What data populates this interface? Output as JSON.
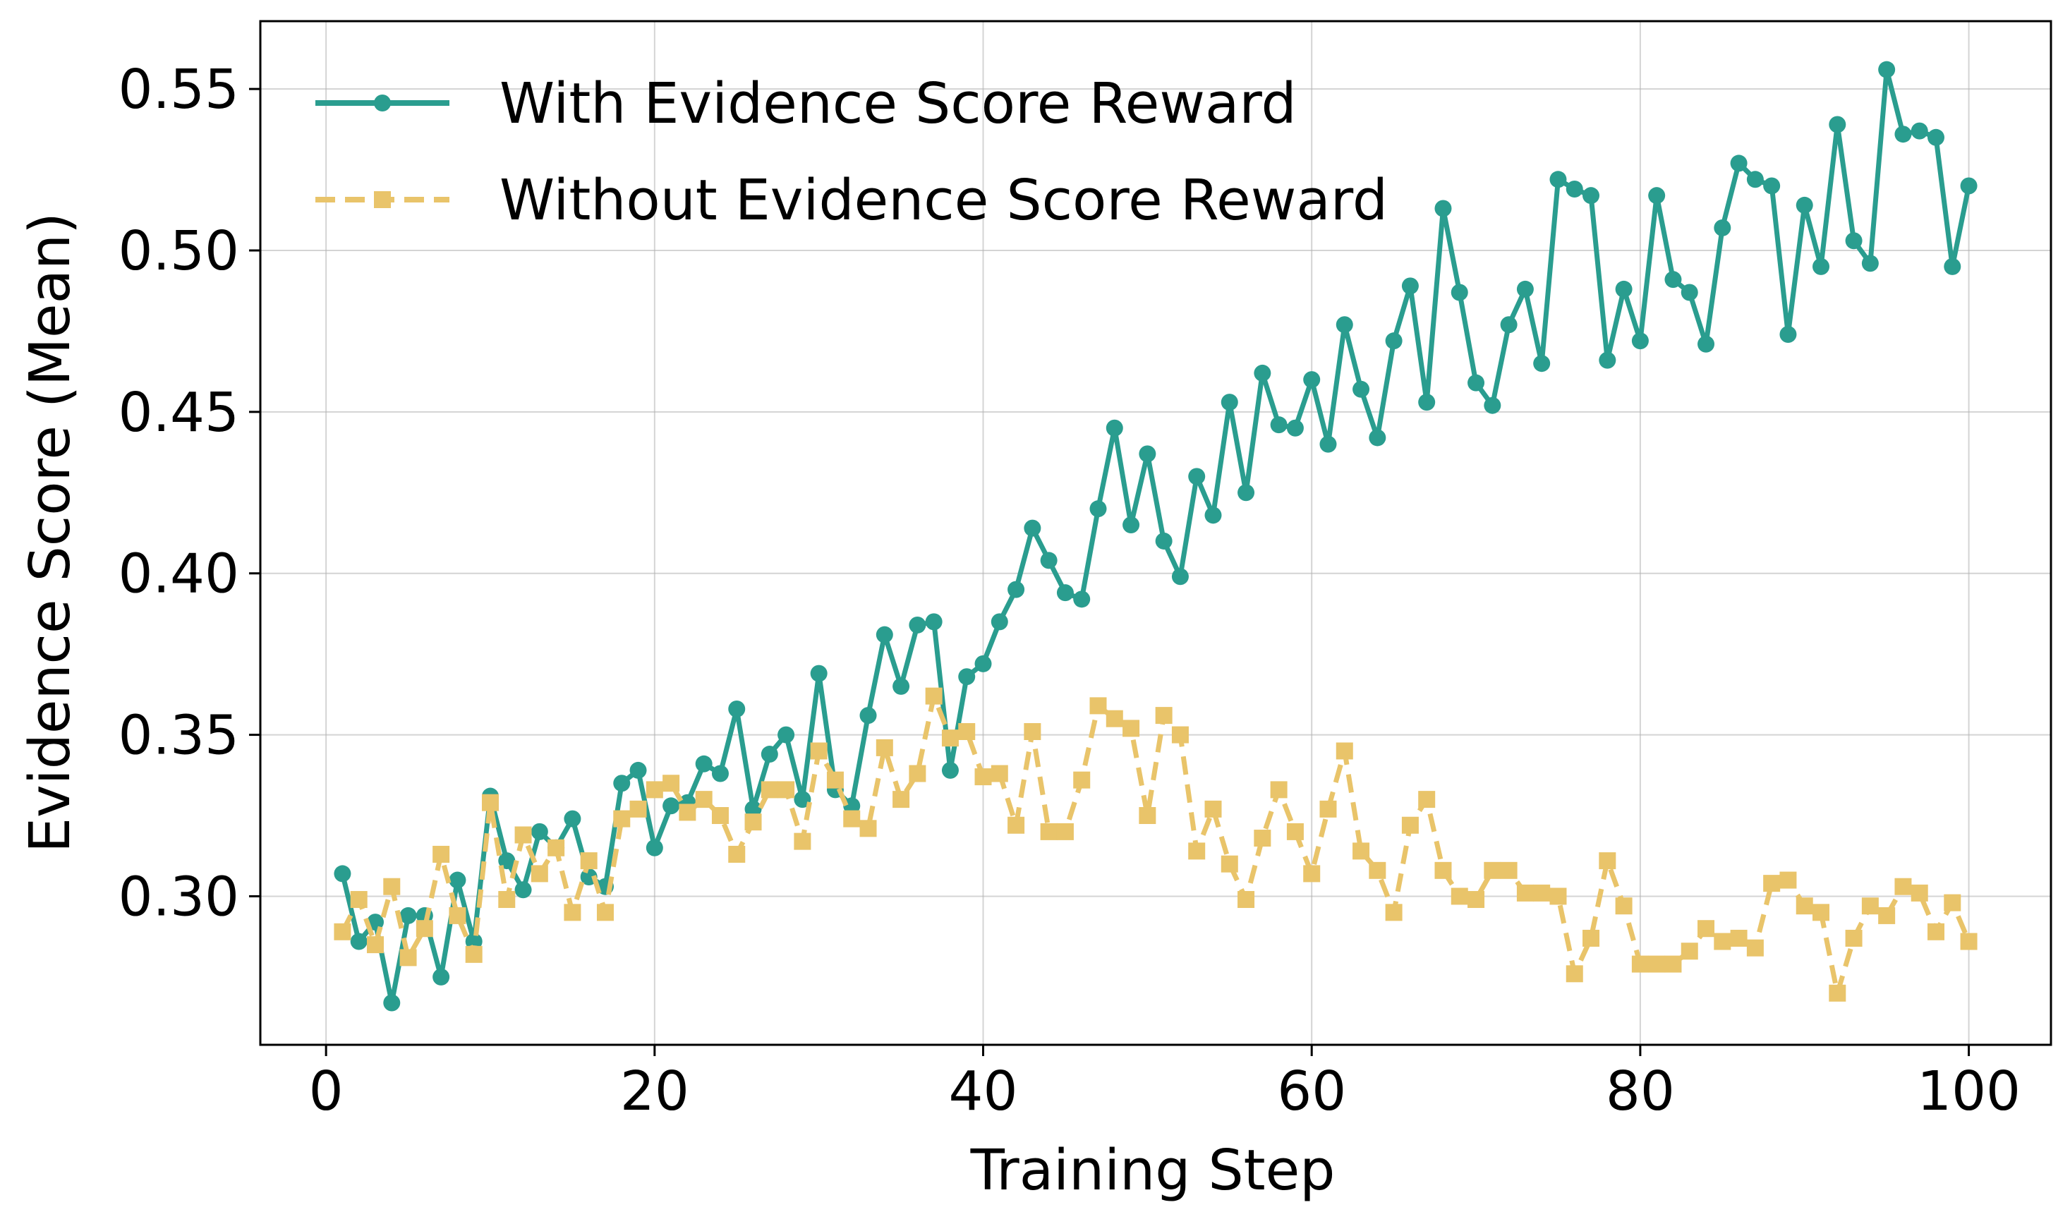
{
  "chart_data": {
    "type": "line",
    "title": "",
    "xlabel": "Training Step",
    "ylabel": "Evidence Score (Mean)",
    "xlim": [
      -4,
      105
    ],
    "ylim": [
      0.254,
      0.571
    ],
    "xticks": [
      0,
      20,
      40,
      60,
      80,
      100
    ],
    "xtick_labels": [
      "0",
      "20",
      "40",
      "60",
      "80",
      "100"
    ],
    "yticks": [
      0.3,
      0.35,
      0.4,
      0.45,
      0.5,
      0.55
    ],
    "ytick_labels": [
      "0.30",
      "0.35",
      "0.40",
      "0.45",
      "0.50",
      "0.55"
    ],
    "grid": true,
    "legend_position": "upper-left",
    "x": [
      1,
      2,
      3,
      4,
      5,
      6,
      7,
      8,
      9,
      10,
      11,
      12,
      13,
      14,
      15,
      16,
      17,
      18,
      19,
      20,
      21,
      22,
      23,
      24,
      25,
      26,
      27,
      28,
      29,
      30,
      31,
      32,
      33,
      34,
      35,
      36,
      37,
      38,
      39,
      40,
      41,
      42,
      43,
      44,
      45,
      46,
      47,
      48,
      49,
      50,
      51,
      52,
      53,
      54,
      55,
      56,
      57,
      58,
      59,
      60,
      61,
      62,
      63,
      64,
      65,
      66,
      67,
      68,
      69,
      70,
      71,
      72,
      73,
      74,
      75,
      76,
      77,
      78,
      79,
      80,
      81,
      82,
      83,
      84,
      85,
      86,
      87,
      88,
      89,
      90,
      91,
      92,
      93,
      94,
      95,
      96,
      97,
      98,
      99,
      100
    ],
    "series": [
      {
        "name": "With Evidence Score Reward",
        "color": "#2a9d8f",
        "style": "solid",
        "marker": "circle",
        "values": [
          0.307,
          0.286,
          0.292,
          0.267,
          0.294,
          0.294,
          0.275,
          0.305,
          0.286,
          0.331,
          0.311,
          0.302,
          0.32,
          0.315,
          0.324,
          0.306,
          0.303,
          0.335,
          0.339,
          0.315,
          0.328,
          0.329,
          0.341,
          0.338,
          0.358,
          0.327,
          0.344,
          0.35,
          0.33,
          0.369,
          0.333,
          0.328,
          0.356,
          0.381,
          0.365,
          0.384,
          0.385,
          0.339,
          0.368,
          0.372,
          0.385,
          0.395,
          0.414,
          0.404,
          0.394,
          0.392,
          0.42,
          0.445,
          0.415,
          0.437,
          0.41,
          0.399,
          0.43,
          0.418,
          0.453,
          0.425,
          0.462,
          0.446,
          0.445,
          0.46,
          0.44,
          0.477,
          0.457,
          0.442,
          0.472,
          0.489,
          0.453,
          0.513,
          0.487,
          0.459,
          0.452,
          0.477,
          0.488,
          0.465,
          0.522,
          0.519,
          0.517,
          0.466,
          0.488,
          0.472,
          0.517,
          0.491,
          0.487,
          0.471,
          0.507,
          0.527,
          0.522,
          0.52,
          0.474,
          0.514,
          0.495,
          0.539,
          0.503,
          0.496,
          0.556,
          0.536,
          0.537,
          0.535,
          0.495,
          0.52
        ]
      },
      {
        "name": "Without Evidence Score Reward",
        "color": "#e9c46a",
        "style": "dashed",
        "marker": "square",
        "values": [
          0.289,
          0.299,
          0.285,
          0.303,
          0.281,
          0.29,
          0.313,
          0.294,
          0.282,
          0.329,
          0.299,
          0.319,
          0.307,
          0.315,
          0.295,
          0.311,
          0.295,
          0.324,
          0.327,
          0.333,
          0.335,
          0.326,
          0.33,
          0.325,
          0.313,
          0.323,
          0.333,
          0.333,
          0.317,
          0.345,
          0.336,
          0.324,
          0.321,
          0.346,
          0.33,
          0.338,
          0.362,
          0.349,
          0.351,
          0.337,
          0.338,
          0.322,
          0.351,
          0.32,
          0.32,
          0.336,
          0.359,
          0.355,
          0.352,
          0.325,
          0.356,
          0.35,
          0.314,
          0.327,
          0.31,
          0.299,
          0.318,
          0.333,
          0.32,
          0.307,
          0.327,
          0.345,
          0.314,
          0.308,
          0.295,
          0.322,
          0.33,
          0.308,
          0.3,
          0.299,
          0.308,
          0.308,
          0.301,
          0.301,
          0.3,
          0.276,
          0.287,
          0.311,
          0.297,
          0.279,
          0.279,
          0.279,
          0.283,
          0.29,
          0.286,
          0.287,
          0.284,
          0.304,
          0.305,
          0.297,
          0.295,
          0.27,
          0.287,
          0.297,
          0.294,
          0.303,
          0.301,
          0.289,
          0.298,
          0.286
        ]
      }
    ]
  }
}
